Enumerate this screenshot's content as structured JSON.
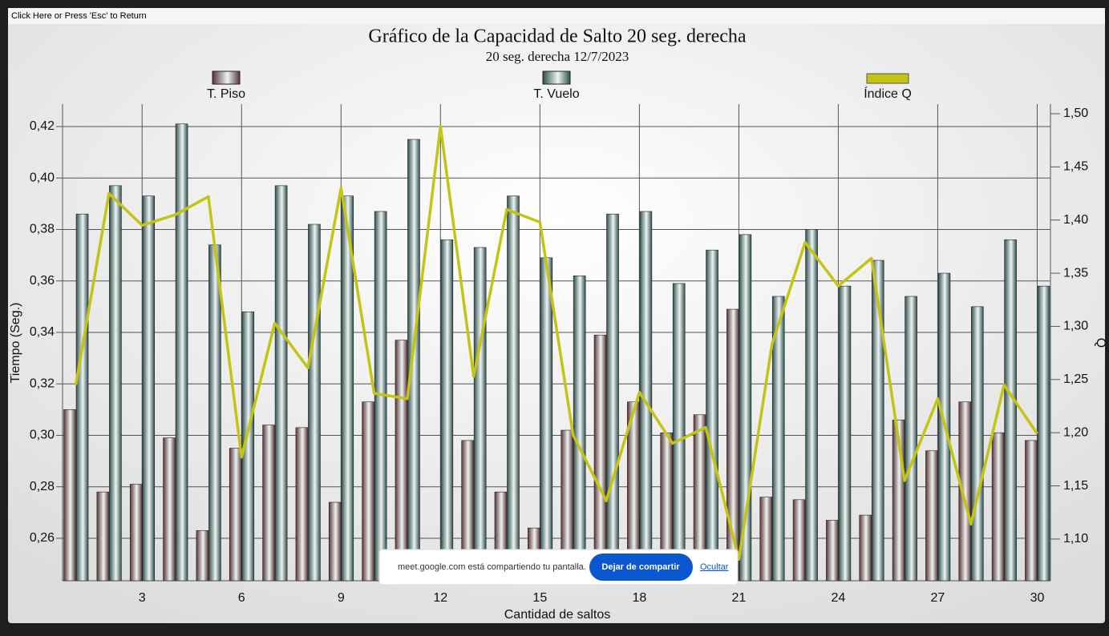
{
  "ui": {
    "return_hint": "Click Here or Press 'Esc' to Return",
    "share_notice": "meet.google.com está compartiendo tu pantalla.",
    "stop_button": "Dejar de compartir",
    "hide_link": "Ocultar"
  },
  "chart_data": {
    "type": "bar",
    "title": "Gráfico de la Capacidad de Salto 20 seg. derecha",
    "subtitle": "20 seg. derecha 12/7/2023",
    "x_label": "Cantidad de saltos",
    "y_label": "Tiempo (Seg.)",
    "y2_label": "Q",
    "x": [
      1,
      2,
      3,
      4,
      5,
      6,
      7,
      8,
      9,
      10,
      11,
      12,
      13,
      14,
      15,
      16,
      17,
      18,
      19,
      20,
      21,
      22,
      23,
      24,
      25,
      26,
      27,
      28,
      29,
      30
    ],
    "xlim": [
      0.6,
      30.4
    ],
    "xticks": [
      3,
      6,
      9,
      12,
      15,
      18,
      21,
      24,
      27,
      30
    ],
    "ylim": [
      0.2435,
      0.4287
    ],
    "yticks": [
      {
        "value": 0.26,
        "label": "0,26"
      },
      {
        "value": 0.28,
        "label": "0,28"
      },
      {
        "value": 0.3,
        "label": "0,30"
      },
      {
        "value": 0.32,
        "label": "0,32"
      },
      {
        "value": 0.34,
        "label": "0,34"
      },
      {
        "value": 0.36,
        "label": "0,36"
      },
      {
        "value": 0.38,
        "label": "0,38"
      },
      {
        "value": 0.4,
        "label": "0,40"
      },
      {
        "value": 0.42,
        "label": "0,42"
      }
    ],
    "y2lim": [
      1.0608,
      1.509
    ],
    "y2ticks": [
      {
        "value": 1.1,
        "label": "1,10"
      },
      {
        "value": 1.15,
        "label": "1,15"
      },
      {
        "value": 1.2,
        "label": "1,20"
      },
      {
        "value": 1.25,
        "label": "1,25"
      },
      {
        "value": 1.3,
        "label": "1,30"
      },
      {
        "value": 1.35,
        "label": "1,35"
      },
      {
        "value": 1.4,
        "label": "1,40"
      },
      {
        "value": 1.45,
        "label": "1,45"
      },
      {
        "value": 1.5,
        "label": "1,50"
      }
    ],
    "grid": true,
    "series": [
      {
        "name": "T. Piso",
        "type": "bar",
        "color": "#5a3434",
        "values": [
          0.31,
          0.278,
          0.281,
          0.299,
          0.263,
          0.295,
          0.304,
          0.303,
          0.274,
          0.313,
          0.337,
          0.255,
          0.298,
          0.278,
          0.264,
          0.302,
          0.339,
          0.313,
          0.301,
          0.308,
          0.349,
          0.276,
          0.275,
          0.267,
          0.269,
          0.306,
          0.294,
          0.313,
          0.301,
          0.298
        ]
      },
      {
        "name": "T. Vuelo",
        "type": "bar",
        "color": "#2f504e",
        "values": [
          0.386,
          0.397,
          0.393,
          0.421,
          0.374,
          0.348,
          0.397,
          0.382,
          0.393,
          0.387,
          0.415,
          0.376,
          0.373,
          0.393,
          0.369,
          0.362,
          0.386,
          0.387,
          0.359,
          0.372,
          0.378,
          0.354,
          0.38,
          0.358,
          0.368,
          0.354,
          0.363,
          0.35,
          0.376,
          0.358
        ]
      },
      {
        "name": "Índice Q",
        "type": "line",
        "axis": "y2",
        "color": "#c3c414",
        "values": [
          1.245,
          1.425,
          1.395,
          1.405,
          1.422,
          1.177,
          1.303,
          1.261,
          1.43,
          1.237,
          1.232,
          1.488,
          1.253,
          1.41,
          1.398,
          1.198,
          1.136,
          1.238,
          1.19,
          1.205,
          1.081,
          1.283,
          1.379,
          1.338,
          1.364,
          1.155,
          1.232,
          1.114,
          1.245,
          1.199
        ]
      }
    ]
  }
}
